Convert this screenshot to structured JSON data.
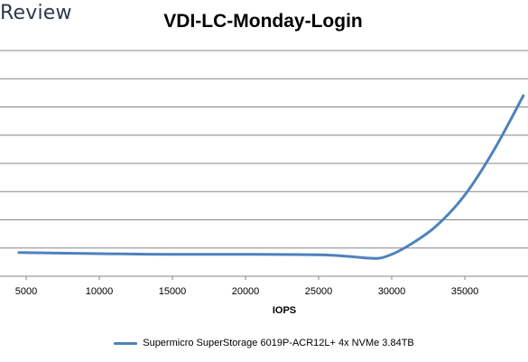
{
  "brand": "Review",
  "chart_data": {
    "type": "line",
    "title": "VDI-LC-Monday-Login",
    "xlabel": "IOPS",
    "ylabel": "",
    "xlim": [
      4000,
      39000
    ],
    "ylim": [
      0,
      10
    ],
    "xticks": [
      5000,
      10000,
      15000,
      20000,
      25000,
      30000,
      35000
    ],
    "grid": true,
    "legend": "bottom",
    "series": [
      {
        "name": "Supermicro SuperStorage 6019P-ACR12L+ 4x NVMe 3.84TB",
        "color": "#4f81bd",
        "x": [
          4500,
          10000,
          15000,
          20000,
          25000,
          27000,
          28500,
          29500,
          31000,
          33000,
          35000,
          37000,
          39000
        ],
        "y": [
          1.05,
          1.0,
          0.97,
          0.97,
          0.95,
          0.88,
          0.8,
          0.85,
          1.3,
          2.2,
          3.6,
          5.6,
          8.0
        ]
      }
    ]
  }
}
